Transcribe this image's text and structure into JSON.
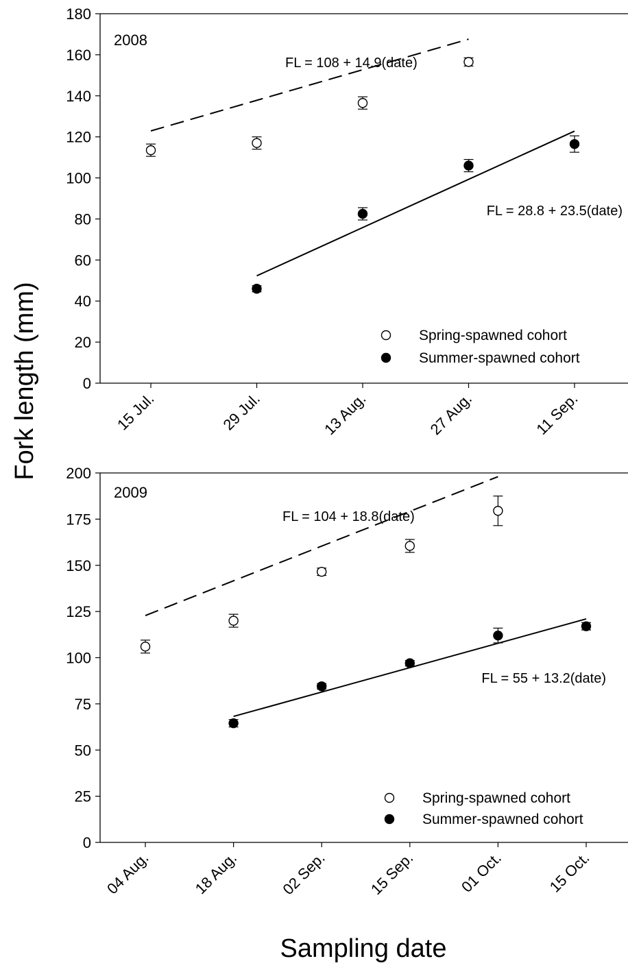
{
  "figure": {
    "ylabel": "Fork length (mm)",
    "xlabel": "Sampling date"
  },
  "chart_data": [
    {
      "type": "scatter",
      "panel_label": "2008",
      "categories": [
        "15 Jul.",
        "29 Jul.",
        "13 Aug.",
        "27 Aug.",
        "11 Sep."
      ],
      "ylim": [
        0,
        180
      ],
      "yticks": [
        0,
        20,
        40,
        60,
        80,
        100,
        120,
        140,
        160,
        180
      ],
      "grid": false,
      "legend_position": "bottom-right",
      "series": [
        {
          "name": "Spring-spawned cohort",
          "marker": "open-circle",
          "x_index": [
            1,
            2,
            3,
            4
          ],
          "values": [
            113.5,
            117,
            136.5,
            156.5
          ],
          "errors": [
            3,
            3,
            3,
            2
          ],
          "fit": {
            "label": "FL = 108 + 14.9(date)",
            "intercept": 108,
            "slope": 14.9,
            "x_from": 1,
            "x_to": 4,
            "style": "dashed"
          }
        },
        {
          "name": "Summer-spawned cohort",
          "marker": "filled-circle",
          "x_index": [
            2,
            3,
            4,
            5
          ],
          "values": [
            46,
            82.5,
            106,
            116.5
          ],
          "errors": [
            1.5,
            3,
            3,
            4
          ],
          "fit": {
            "label": "FL = 28.8 + 23.5(date)",
            "intercept": 28.8,
            "slope": 23.5,
            "x_from": 1,
            "x_to": 4,
            "style": "solid"
          }
        }
      ]
    },
    {
      "type": "scatter",
      "panel_label": "2009",
      "categories": [
        "04 Aug.",
        "18 Aug.",
        "02 Sep.",
        "15 Sep.",
        "01 Oct.",
        "15 Oct."
      ],
      "ylim": [
        0,
        200
      ],
      "yticks": [
        0,
        25,
        50,
        75,
        100,
        125,
        150,
        175,
        200
      ],
      "grid": false,
      "legend_position": "bottom-right",
      "series": [
        {
          "name": "Spring-spawned cohort",
          "marker": "open-circle",
          "x_index": [
            1,
            2,
            3,
            4,
            5
          ],
          "values": [
            106,
            120,
            146.5,
            160.5,
            179.5
          ],
          "errors": [
            3.5,
            3.5,
            2,
            3.5,
            8
          ],
          "fit": {
            "label": "FL = 104 + 18.8(date)",
            "intercept": 104,
            "slope": 18.8,
            "x_from": 1,
            "x_to": 5,
            "style": "dashed"
          }
        },
        {
          "name": "Summer-spawned cohort",
          "marker": "filled-circle",
          "x_index": [
            2,
            3,
            4,
            5,
            6
          ],
          "values": [
            64.5,
            84.5,
            97,
            112,
            117
          ],
          "errors": [
            2,
            1.5,
            1.5,
            4,
            2
          ],
          "fit": {
            "label": "FL = 55 + 13.2(date)",
            "intercept": 55,
            "slope": 13.2,
            "x_from": 1,
            "x_to": 5,
            "style": "solid"
          }
        }
      ]
    }
  ]
}
